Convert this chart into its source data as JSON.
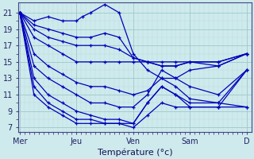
{
  "xlabel": "Température (°c)",
  "background_color": "#ceeaec",
  "line_color": "#0000bb",
  "ylim": [
    6.5,
    22
  ],
  "yticks": [
    7,
    9,
    11,
    13,
    15,
    17,
    19,
    21
  ],
  "xtick_labels": [
    "Mer",
    "Jeu",
    "Ven",
    "Sam",
    "D"
  ],
  "xtick_positions": [
    0,
    1,
    2,
    3,
    4
  ],
  "series": [
    {
      "x": [
        0,
        0.25,
        0.5,
        0.75,
        1.0,
        1.1,
        1.25,
        1.5,
        1.75,
        2.0,
        2.25,
        2.5,
        2.75,
        3.0,
        3.5,
        4.0
      ],
      "y": [
        21,
        20,
        20.5,
        20,
        20,
        20.5,
        21,
        22,
        21,
        16,
        14,
        13,
        12,
        10.5,
        10,
        9.5
      ]
    },
    {
      "x": [
        0,
        0.25,
        0.5,
        0.75,
        1.0,
        1.25,
        1.5,
        1.75,
        2.0,
        2.25,
        2.5,
        2.75,
        3.0,
        3.5,
        4.0
      ],
      "y": [
        21,
        19.5,
        19,
        18.5,
        18,
        18,
        18.5,
        18,
        15.5,
        15,
        15,
        15,
        15,
        15,
        16
      ]
    },
    {
      "x": [
        0,
        0.25,
        0.5,
        0.75,
        1.0,
        1.25,
        1.5,
        1.75,
        2.0,
        2.25,
        2.5,
        2.75,
        3.0,
        3.5,
        4.0
      ],
      "y": [
        21,
        19,
        18,
        17.5,
        17,
        17,
        17,
        16.5,
        15.5,
        15,
        14.5,
        14.5,
        15,
        15,
        16
      ]
    },
    {
      "x": [
        0,
        0.25,
        0.5,
        0.75,
        1.0,
        1.25,
        1.5,
        1.75,
        2.0,
        2.25,
        2.5,
        2.75,
        3.0,
        3.5,
        4.0
      ],
      "y": [
        21,
        18,
        17,
        16,
        15,
        15,
        15,
        15,
        15,
        15,
        14.5,
        14.5,
        15,
        14.5,
        16
      ]
    },
    {
      "x": [
        0,
        0.25,
        0.5,
        0.75,
        1.0,
        1.25,
        1.5,
        1.75,
        2.0,
        2.25,
        2.5,
        2.75,
        3.0,
        3.5,
        4.0
      ],
      "y": [
        21,
        16,
        14.5,
        13.5,
        12.5,
        12,
        12,
        11.5,
        11,
        11.5,
        13,
        13,
        14,
        14.5,
        16
      ]
    },
    {
      "x": [
        0,
        0.25,
        0.5,
        0.75,
        1.0,
        1.25,
        1.5,
        1.75,
        2.0,
        2.25,
        2.5,
        2.75,
        3.0,
        3.5,
        4.0
      ],
      "y": [
        21,
        14.5,
        13,
        12,
        11,
        10,
        10,
        9.5,
        9.5,
        11,
        14,
        13,
        12,
        11,
        14
      ]
    },
    {
      "x": [
        0,
        0.25,
        0.5,
        0.75,
        1.0,
        1.25,
        1.5,
        1.75,
        2.0,
        2.25,
        2.5,
        2.75,
        3.0,
        3.5,
        4.0
      ],
      "y": [
        21,
        13,
        11,
        10,
        9,
        8.5,
        8,
        8,
        7.5,
        10,
        12,
        11,
        10,
        10,
        14
      ]
    },
    {
      "x": [
        0,
        0.25,
        0.5,
        0.75,
        1.0,
        1.25,
        1.5,
        1.75,
        2.0,
        2.25,
        2.5,
        2.75,
        3.0,
        3.5,
        4.0
      ],
      "y": [
        21,
        12,
        10,
        9,
        8,
        8,
        7.5,
        7.5,
        7.5,
        10,
        12,
        11,
        9.5,
        9.5,
        14
      ]
    },
    {
      "x": [
        0,
        0.25,
        0.5,
        0.75,
        1.0,
        1.25,
        1.5,
        1.75,
        2.0,
        2.25,
        2.5,
        2.75,
        3.0,
        3.5,
        4.0
      ],
      "y": [
        21,
        11,
        9.5,
        8.5,
        7.5,
        7.5,
        7.5,
        7.5,
        7,
        8.5,
        10,
        9.5,
        9.5,
        9.5,
        9.5
      ]
    }
  ]
}
